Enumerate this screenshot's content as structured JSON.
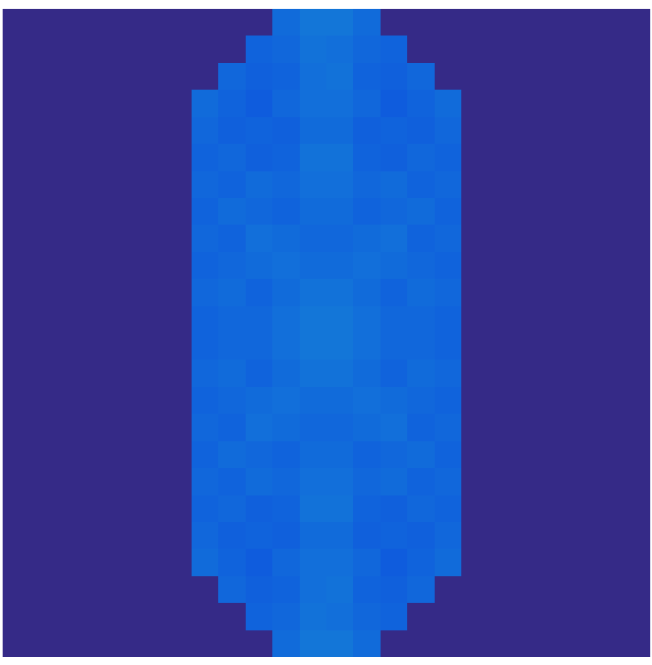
{
  "chart_data": {
    "type": "heatmap",
    "tick_labels": false,
    "grid": false,
    "zlim": [
      0,
      1
    ],
    "cells": [
      [
        0,
        0,
        0,
        0,
        0,
        0,
        0,
        0,
        0,
        0,
        0.14,
        0.17,
        0.17,
        0.14,
        0,
        0,
        0,
        0,
        0,
        0,
        0,
        0,
        0,
        0
      ],
      [
        0,
        0,
        0,
        0,
        0,
        0,
        0,
        0,
        0,
        0.12,
        0.13,
        0.16,
        0.15,
        0.13,
        0.12,
        0,
        0,
        0,
        0,
        0,
        0,
        0,
        0,
        0
      ],
      [
        0,
        0,
        0,
        0,
        0,
        0,
        0,
        0,
        0.13,
        0.11,
        0.12,
        0.15,
        0.16,
        0.12,
        0.11,
        0.13,
        0,
        0,
        0,
        0,
        0,
        0,
        0,
        0
      ],
      [
        0,
        0,
        0,
        0,
        0,
        0,
        0,
        0.14,
        0.12,
        0.1,
        0.13,
        0.15,
        0.15,
        0.13,
        0.1,
        0.12,
        0.14,
        0,
        0,
        0,
        0,
        0,
        0,
        0
      ],
      [
        0,
        0,
        0,
        0,
        0,
        0,
        0,
        0.13,
        0.11,
        0.12,
        0.11,
        0.14,
        0.14,
        0.11,
        0.12,
        0.11,
        0.13,
        0,
        0,
        0,
        0,
        0,
        0,
        0
      ],
      [
        0,
        0,
        0,
        0,
        0,
        0,
        0,
        0.12,
        0.13,
        0.11,
        0.12,
        0.16,
        0.16,
        0.12,
        0.11,
        0.13,
        0.12,
        0,
        0,
        0,
        0,
        0,
        0,
        0
      ],
      [
        0,
        0,
        0,
        0,
        0,
        0,
        0,
        0.13,
        0.12,
        0.14,
        0.13,
        0.15,
        0.15,
        0.13,
        0.14,
        0.12,
        0.13,
        0,
        0,
        0,
        0,
        0,
        0,
        0
      ],
      [
        0,
        0,
        0,
        0,
        0,
        0,
        0,
        0.12,
        0.14,
        0.13,
        0.12,
        0.14,
        0.14,
        0.12,
        0.13,
        0.14,
        0.12,
        0,
        0,
        0,
        0,
        0,
        0,
        0
      ],
      [
        0,
        0,
        0,
        0,
        0,
        0,
        0,
        0.13,
        0.12,
        0.15,
        0.14,
        0.13,
        0.13,
        0.14,
        0.15,
        0.12,
        0.13,
        0,
        0,
        0,
        0,
        0,
        0,
        0
      ],
      [
        0,
        0,
        0,
        0,
        0,
        0,
        0,
        0.12,
        0.13,
        0.14,
        0.15,
        0.14,
        0.14,
        0.15,
        0.14,
        0.13,
        0.12,
        0,
        0,
        0,
        0,
        0,
        0,
        0
      ],
      [
        0,
        0,
        0,
        0,
        0,
        0,
        0,
        0.13,
        0.14,
        0.12,
        0.14,
        0.16,
        0.16,
        0.14,
        0.12,
        0.14,
        0.13,
        0,
        0,
        0,
        0,
        0,
        0,
        0
      ],
      [
        0,
        0,
        0,
        0,
        0,
        0,
        0,
        0.12,
        0.13,
        0.13,
        0.15,
        0.17,
        0.17,
        0.15,
        0.13,
        0.13,
        0.12,
        0,
        0,
        0,
        0,
        0,
        0,
        0
      ],
      [
        0,
        0,
        0,
        0,
        0,
        0,
        0,
        0.12,
        0.13,
        0.13,
        0.15,
        0.17,
        0.17,
        0.15,
        0.13,
        0.13,
        0.12,
        0,
        0,
        0,
        0,
        0,
        0,
        0
      ],
      [
        0,
        0,
        0,
        0,
        0,
        0,
        0,
        0.13,
        0.14,
        0.12,
        0.14,
        0.16,
        0.16,
        0.14,
        0.12,
        0.14,
        0.13,
        0,
        0,
        0,
        0,
        0,
        0,
        0
      ],
      [
        0,
        0,
        0,
        0,
        0,
        0,
        0,
        0.12,
        0.13,
        0.14,
        0.15,
        0.14,
        0.14,
        0.15,
        0.14,
        0.13,
        0.12,
        0,
        0,
        0,
        0,
        0,
        0,
        0
      ],
      [
        0,
        0,
        0,
        0,
        0,
        0,
        0,
        0.13,
        0.12,
        0.15,
        0.14,
        0.13,
        0.13,
        0.14,
        0.15,
        0.12,
        0.13,
        0,
        0,
        0,
        0,
        0,
        0,
        0
      ],
      [
        0,
        0,
        0,
        0,
        0,
        0,
        0,
        0.12,
        0.14,
        0.13,
        0.12,
        0.14,
        0.14,
        0.12,
        0.13,
        0.14,
        0.12,
        0,
        0,
        0,
        0,
        0,
        0,
        0
      ],
      [
        0,
        0,
        0,
        0,
        0,
        0,
        0,
        0.13,
        0.12,
        0.14,
        0.13,
        0.15,
        0.15,
        0.13,
        0.14,
        0.12,
        0.13,
        0,
        0,
        0,
        0,
        0,
        0,
        0
      ],
      [
        0,
        0,
        0,
        0,
        0,
        0,
        0,
        0.12,
        0.13,
        0.11,
        0.12,
        0.16,
        0.16,
        0.12,
        0.11,
        0.13,
        0.12,
        0,
        0,
        0,
        0,
        0,
        0,
        0
      ],
      [
        0,
        0,
        0,
        0,
        0,
        0,
        0,
        0.13,
        0.11,
        0.12,
        0.11,
        0.14,
        0.14,
        0.11,
        0.12,
        0.11,
        0.13,
        0,
        0,
        0,
        0,
        0,
        0,
        0
      ],
      [
        0,
        0,
        0,
        0,
        0,
        0,
        0,
        0.14,
        0.12,
        0.1,
        0.13,
        0.15,
        0.15,
        0.13,
        0.1,
        0.12,
        0.14,
        0,
        0,
        0,
        0,
        0,
        0,
        0
      ],
      [
        0,
        0,
        0,
        0,
        0,
        0,
        0,
        0,
        0.13,
        0.11,
        0.12,
        0.15,
        0.16,
        0.12,
        0.11,
        0.13,
        0,
        0,
        0,
        0,
        0,
        0,
        0,
        0
      ],
      [
        0,
        0,
        0,
        0,
        0,
        0,
        0,
        0,
        0,
        0.12,
        0.13,
        0.16,
        0.15,
        0.13,
        0.12,
        0,
        0,
        0,
        0,
        0,
        0,
        0,
        0,
        0
      ],
      [
        0,
        0,
        0,
        0,
        0,
        0,
        0,
        0,
        0,
        0,
        0.14,
        0.17,
        0.17,
        0.14,
        0,
        0,
        0,
        0,
        0,
        0,
        0,
        0,
        0,
        0
      ]
    ]
  }
}
